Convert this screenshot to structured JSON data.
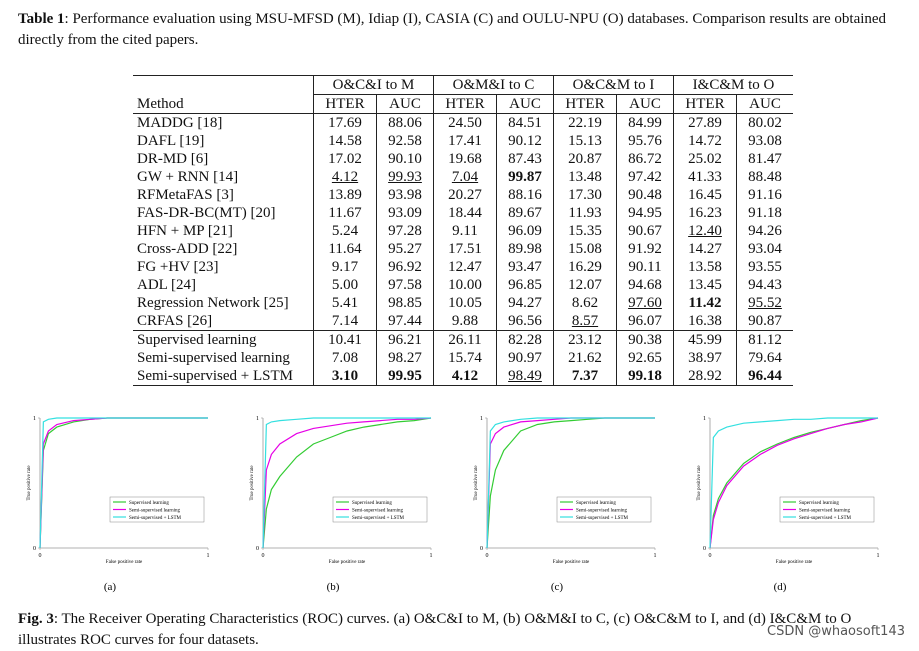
{
  "table_caption": {
    "label": "Table 1",
    "text": ": Performance evaluation using MSU-MFSD (M), Idiap (I), CASIA (C) and OULU-NPU (O) databases. Comparison results are obtained directly from the cited papers."
  },
  "table": {
    "groups": [
      "O&C&I to M",
      "O&M&I to C",
      "O&C&M to I",
      "I&C&M to O"
    ],
    "header": [
      "Method",
      "HTER",
      "AUC",
      "HTER",
      "AUC",
      "HTER",
      "AUC",
      "HTER",
      "AUC"
    ],
    "rows": [
      [
        "MADDG [18]",
        "17.69",
        "88.06",
        "24.50",
        "84.51",
        "22.19",
        "84.99",
        "27.89",
        "80.02"
      ],
      [
        "DAFL [19]",
        "14.58",
        "92.58",
        "17.41",
        "90.12",
        "15.13",
        "95.76",
        "14.72",
        "93.08"
      ],
      [
        "DR-MD [6]",
        "17.02",
        "90.10",
        "19.68",
        "87.43",
        "20.87",
        "86.72",
        "25.02",
        "81.47"
      ],
      [
        "GW + RNN [14]",
        "4.12",
        "99.93",
        "7.04",
        "99.87",
        "13.48",
        "97.42",
        "41.33",
        "88.48"
      ],
      [
        "RFMetaFAS [3]",
        "13.89",
        "93.98",
        "20.27",
        "88.16",
        "17.30",
        "90.48",
        "16.45",
        "91.16"
      ],
      [
        "FAS-DR-BC(MT) [20]",
        "11.67",
        "93.09",
        "18.44",
        "89.67",
        "11.93",
        "94.95",
        "16.23",
        "91.18"
      ],
      [
        "HFN + MP [21]",
        "5.24",
        "97.28",
        "9.11",
        "96.09",
        "15.35",
        "90.67",
        "12.40",
        "94.26"
      ],
      [
        "Cross-ADD [22]",
        "11.64",
        "95.27",
        "17.51",
        "89.98",
        "15.08",
        "91.92",
        "14.27",
        "93.04"
      ],
      [
        "FG +HV [23]",
        "9.17",
        "96.92",
        "12.47",
        "93.47",
        "16.29",
        "90.11",
        "13.58",
        "93.55"
      ],
      [
        "ADL [24]",
        "5.00",
        "97.58",
        "10.00",
        "96.85",
        "12.07",
        "94.68",
        "13.45",
        "94.43"
      ],
      [
        "Regression Network [25]",
        "5.41",
        "98.85",
        "10.05",
        "94.27",
        "8.62",
        "97.60",
        "11.42",
        "95.52"
      ],
      [
        "CRFAS [26]",
        "7.14",
        "97.44",
        "9.88",
        "96.56",
        "8.57",
        "96.07",
        "16.38",
        "90.87"
      ],
      [
        "Supervised learning",
        "10.41",
        "96.21",
        "26.11",
        "82.28",
        "23.12",
        "90.38",
        "45.99",
        "81.12"
      ],
      [
        "Semi-supervised learning",
        "7.08",
        "98.27",
        "15.74",
        "90.97",
        "21.62",
        "92.65",
        "38.97",
        "79.64"
      ],
      [
        "Semi-supervised + LSTM",
        "3.10",
        "99.95",
        "4.12",
        "98.49",
        "7.37",
        "99.18",
        "28.92",
        "96.44"
      ]
    ]
  },
  "chart_data": [
    {
      "type": "line",
      "label": "(a)",
      "xlabel": "False positive rate",
      "ylabel": "True positive rate",
      "x": [
        0,
        0.02,
        0.05,
        0.1,
        0.2,
        0.3,
        0.4,
        0.5,
        0.6,
        0.7,
        0.8,
        0.9,
        1
      ],
      "xlim": [
        0,
        1
      ],
      "ylim": [
        0,
        1
      ],
      "xticks": [
        0,
        1
      ],
      "yticks": [
        0,
        1
      ],
      "legend": "lower right",
      "series": [
        {
          "name": "Supervised learning",
          "color": "#33cc33",
          "values": [
            0,
            0.75,
            0.88,
            0.93,
            0.97,
            0.99,
            1,
            1,
            1,
            1,
            1,
            1,
            1
          ]
        },
        {
          "name": "Semi-supervised learning",
          "color": "#e600e6",
          "values": [
            0,
            0.8,
            0.9,
            0.95,
            0.98,
            0.99,
            1,
            1,
            1,
            1,
            1,
            1,
            1
          ]
        },
        {
          "name": "Semi-supervised + LSTM",
          "color": "#33e0e0",
          "values": [
            0,
            0.97,
            0.99,
            1,
            1,
            1,
            1,
            1,
            1,
            1,
            1,
            1,
            1
          ]
        }
      ]
    },
    {
      "type": "line",
      "label": "(b)",
      "xlabel": "False positive rate",
      "ylabel": "True positive rate",
      "x": [
        0,
        0.02,
        0.05,
        0.1,
        0.2,
        0.3,
        0.4,
        0.5,
        0.6,
        0.7,
        0.8,
        0.9,
        1
      ],
      "xlim": [
        0,
        1
      ],
      "ylim": [
        0,
        1
      ],
      "xticks": [
        0,
        1
      ],
      "yticks": [
        0,
        1
      ],
      "legend": "lower right",
      "series": [
        {
          "name": "Supervised learning",
          "color": "#33cc33",
          "values": [
            0,
            0.3,
            0.45,
            0.55,
            0.7,
            0.8,
            0.85,
            0.9,
            0.93,
            0.95,
            0.97,
            0.98,
            1
          ]
        },
        {
          "name": "Semi-supervised learning",
          "color": "#e600e6",
          "values": [
            0,
            0.6,
            0.72,
            0.8,
            0.88,
            0.92,
            0.94,
            0.96,
            0.97,
            0.98,
            0.99,
            0.99,
            1
          ]
        },
        {
          "name": "Semi-supervised + LSTM",
          "color": "#33e0e0",
          "values": [
            0,
            0.95,
            0.97,
            0.98,
            0.99,
            1,
            1,
            1,
            1,
            1,
            1,
            1,
            1
          ]
        }
      ]
    },
    {
      "type": "line",
      "label": "(c)",
      "xlabel": "False positive rate",
      "ylabel": "True positive rate",
      "x": [
        0,
        0.02,
        0.05,
        0.1,
        0.2,
        0.3,
        0.4,
        0.5,
        0.6,
        0.7,
        0.8,
        0.9,
        1
      ],
      "xlim": [
        0,
        1
      ],
      "ylim": [
        0,
        1
      ],
      "xticks": [
        0,
        1
      ],
      "yticks": [
        0,
        1
      ],
      "legend": "lower right",
      "series": [
        {
          "name": "Supervised learning",
          "color": "#33cc33",
          "values": [
            0,
            0.4,
            0.6,
            0.75,
            0.9,
            0.95,
            0.97,
            0.98,
            0.99,
            1,
            1,
            1,
            1
          ]
        },
        {
          "name": "Semi-supervised learning",
          "color": "#e600e6",
          "values": [
            0,
            0.8,
            0.88,
            0.93,
            0.97,
            0.98,
            0.99,
            1,
            1,
            1,
            1,
            1,
            1
          ]
        },
        {
          "name": "Semi-supervised + LSTM",
          "color": "#33e0e0",
          "values": [
            0,
            0.9,
            0.95,
            0.97,
            0.99,
            1,
            1,
            1,
            1,
            1,
            1,
            1,
            1
          ]
        }
      ]
    },
    {
      "type": "line",
      "label": "(d)",
      "xlabel": "False positive rate",
      "ylabel": "True positive rate",
      "x": [
        0,
        0.02,
        0.05,
        0.1,
        0.2,
        0.3,
        0.4,
        0.5,
        0.6,
        0.7,
        0.8,
        0.9,
        1
      ],
      "xlim": [
        0,
        1
      ],
      "ylim": [
        0,
        1
      ],
      "xticks": [
        0,
        1
      ],
      "yticks": [
        0,
        1
      ],
      "legend": "lower right",
      "series": [
        {
          "name": "Supervised learning",
          "color": "#33cc33",
          "values": [
            0,
            0.25,
            0.38,
            0.5,
            0.65,
            0.74,
            0.8,
            0.85,
            0.89,
            0.92,
            0.95,
            0.98,
            1
          ]
        },
        {
          "name": "Semi-supervised learning",
          "color": "#e600e6",
          "values": [
            0,
            0.22,
            0.35,
            0.48,
            0.63,
            0.72,
            0.79,
            0.84,
            0.88,
            0.92,
            0.95,
            0.97,
            1
          ]
        },
        {
          "name": "Semi-supervised + LSTM",
          "color": "#33e0e0",
          "values": [
            0,
            0.85,
            0.9,
            0.93,
            0.96,
            0.97,
            0.98,
            0.99,
            0.99,
            1,
            1,
            1,
            1
          ]
        }
      ]
    }
  ],
  "figure_caption": {
    "label": "Fig. 3",
    "text": ": The Receiver Operating Characteristics (ROC) curves. (a) O&C&I to M, (b) O&M&I to C, (c) O&C&M to I, and (d) I&C&M to O illustrates ROC curves for four datasets."
  },
  "watermark": "CSDN @whaosoft143"
}
